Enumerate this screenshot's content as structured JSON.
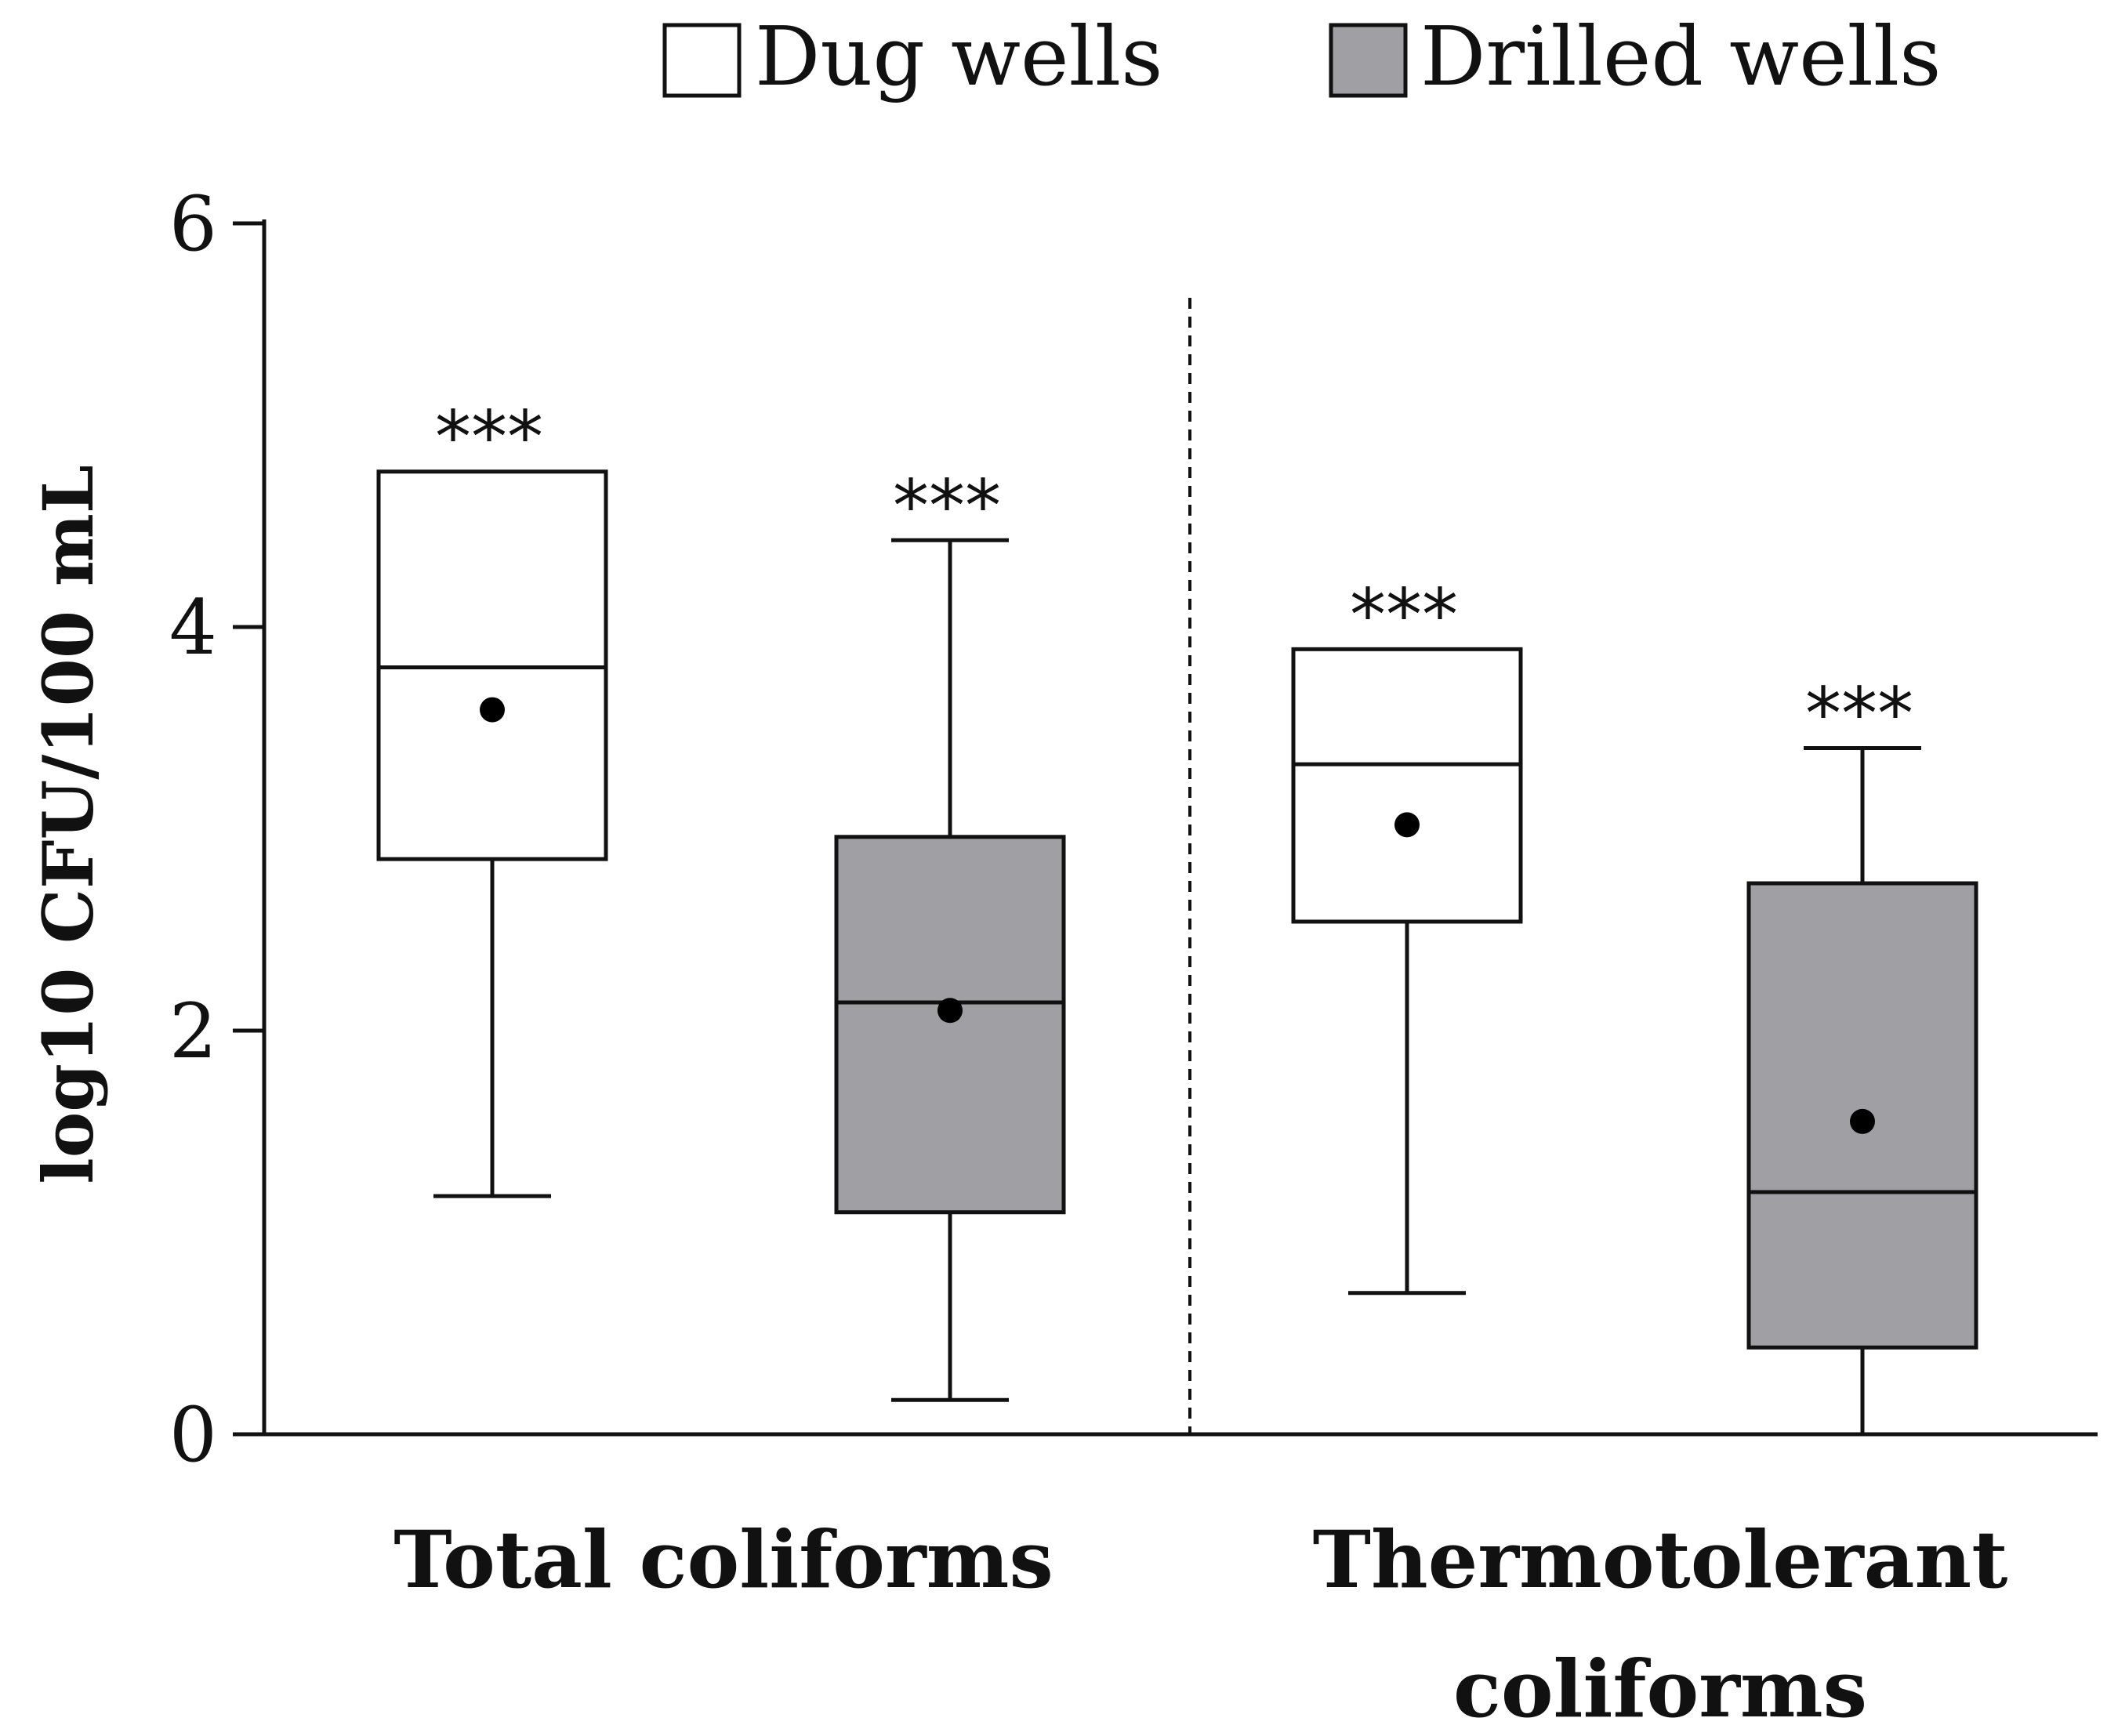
{
  "chart_data": {
    "type": "boxplot",
    "ylabel": "log10 CFU/100 mL",
    "ylim": [
      0,
      6
    ],
    "yticks": [
      "0",
      "2",
      "4",
      "6"
    ],
    "categories": [
      {
        "id": "total",
        "label_lines": [
          "Total coliforms"
        ]
      },
      {
        "id": "thermo",
        "label_lines": [
          "Thermotolerant",
          "coliforms"
        ]
      }
    ],
    "series": [
      {
        "name": "Dug wells",
        "color": "#ffffff"
      },
      {
        "name": "Drilled wells",
        "color": "#a0a0a4"
      }
    ],
    "boxes": [
      {
        "category": "total",
        "series": 0,
        "min": 1.18,
        "q1": 2.85,
        "median": 3.8,
        "q3": 4.77,
        "max": 4.77,
        "mean": 3.59,
        "significance": "***"
      },
      {
        "category": "total",
        "series": 1,
        "min": 0.17,
        "q1": 1.1,
        "median": 2.14,
        "q3": 2.96,
        "max": 4.43,
        "mean": 2.1,
        "significance": "***"
      },
      {
        "category": "thermo",
        "series": 0,
        "min": 0.7,
        "q1": 2.54,
        "median": 3.32,
        "q3": 3.89,
        "max": 3.89,
        "mean": 3.02,
        "significance": "***"
      },
      {
        "category": "thermo",
        "series": 1,
        "min": 0.0,
        "q1": 0.43,
        "median": 1.2,
        "q3": 2.73,
        "max": 3.4,
        "mean": 1.55,
        "significance": "***"
      }
    ],
    "separator": "dashed vertical line between categories",
    "legend_position": "top"
  }
}
